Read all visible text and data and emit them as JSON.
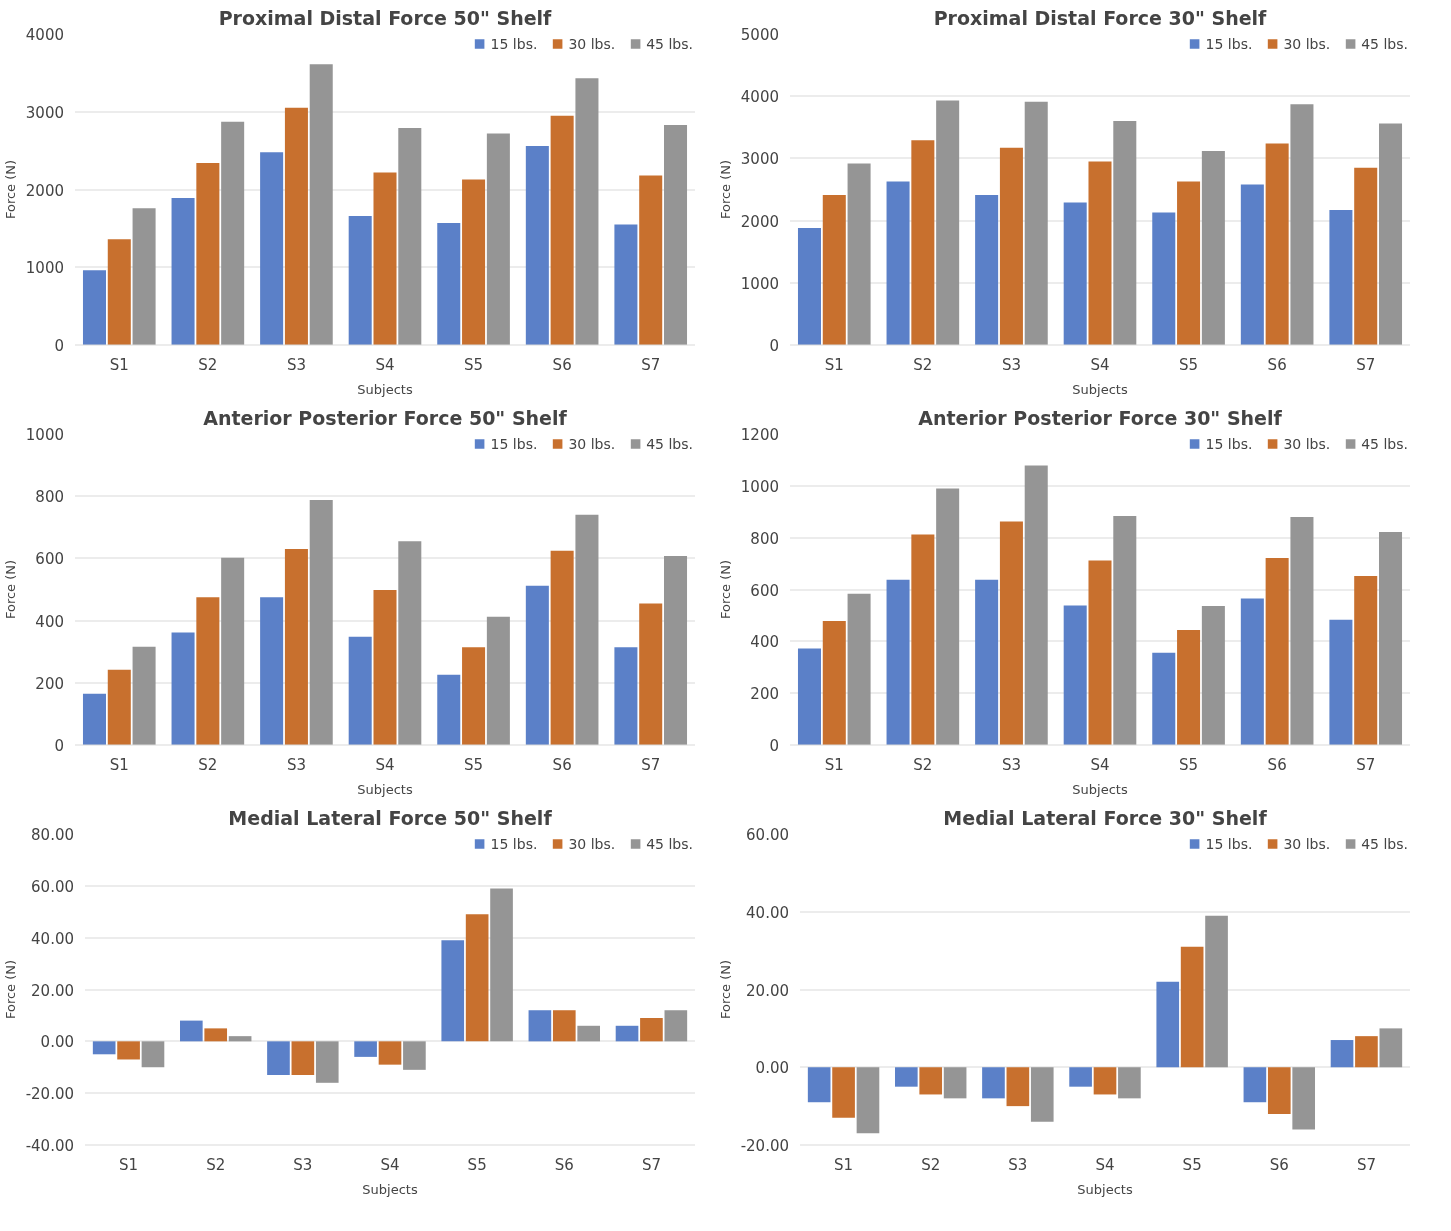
{
  "chart_data": [
    {
      "type": "bar",
      "title": "Proximal Distal Force 50\" Shelf",
      "xlabel": "Subjects",
      "ylabel": "Force (N)",
      "categories": [
        "S1",
        "S2",
        "S3",
        "S4",
        "S5",
        "S6",
        "S7"
      ],
      "ylim": [
        0,
        4000
      ],
      "yticks": [
        0,
        1000,
        2000,
        3000,
        4000
      ],
      "grid": "y",
      "legend": "top right",
      "series": [
        {
          "name": "15 lbs.",
          "color": "#5b80c8",
          "values": [
            960,
            1890,
            2480,
            1660,
            1570,
            2560,
            1550
          ]
        },
        {
          "name": "30 lbs.",
          "color": "#c8702e",
          "values": [
            1360,
            2340,
            3050,
            2220,
            2130,
            2950,
            2180
          ]
        },
        {
          "name": "45 lbs.",
          "color": "#959595",
          "values": [
            1760,
            2870,
            3610,
            2790,
            2720,
            3430,
            2830
          ]
        }
      ]
    },
    {
      "type": "bar",
      "title": "Proximal Distal Force 30\" Shelf",
      "xlabel": "Subjects",
      "ylabel": "Force (N)",
      "categories": [
        "S1",
        "S2",
        "S3",
        "S4",
        "S5",
        "S6",
        "S7"
      ],
      "ylim": [
        0,
        5000
      ],
      "yticks": [
        0,
        1000,
        2000,
        3000,
        4000,
        5000
      ],
      "grid": "y",
      "legend": "top right",
      "series": [
        {
          "name": "15 lbs.",
          "color": "#5b80c8",
          "values": [
            1880,
            2630,
            2410,
            2290,
            2130,
            2580,
            2170
          ]
        },
        {
          "name": "30 lbs.",
          "color": "#c8702e",
          "values": [
            2410,
            3290,
            3170,
            2950,
            2630,
            3240,
            2850
          ]
        },
        {
          "name": "45 lbs.",
          "color": "#959595",
          "values": [
            2920,
            3930,
            3910,
            3600,
            3120,
            3870,
            3560
          ]
        }
      ]
    },
    {
      "type": "bar",
      "title": "Anterior Posterior Force 50\" Shelf",
      "xlabel": "Subjects",
      "ylabel": "Force (N)",
      "categories": [
        "S1",
        "S2",
        "S3",
        "S4",
        "S5",
        "S6",
        "S7"
      ],
      "ylim": [
        0,
        1000
      ],
      "yticks": [
        0,
        200,
        400,
        600,
        800,
        1000
      ],
      "grid": "y",
      "legend": "top right",
      "series": [
        {
          "name": "15 lbs.",
          "color": "#5b80c8",
          "values": [
            165,
            362,
            475,
            348,
            226,
            512,
            314
          ]
        },
        {
          "name": "30 lbs.",
          "color": "#c8702e",
          "values": [
            242,
            475,
            630,
            498,
            314,
            625,
            455
          ]
        },
        {
          "name": "45 lbs.",
          "color": "#959595",
          "values": [
            316,
            602,
            788,
            655,
            412,
            740,
            608
          ]
        }
      ]
    },
    {
      "type": "bar",
      "title": "Anterior Posterior Force 30\" Shelf",
      "xlabel": "Subjects",
      "ylabel": "Force (N)",
      "categories": [
        "S1",
        "S2",
        "S3",
        "S4",
        "S5",
        "S6",
        "S7"
      ],
      "ylim": [
        0,
        1200
      ],
      "yticks": [
        0,
        200,
        400,
        600,
        800,
        1000,
        1200
      ],
      "grid": "y",
      "legend": "top right",
      "series": [
        {
          "name": "15 lbs.",
          "color": "#5b80c8",
          "values": [
            372,
            638,
            638,
            538,
            356,
            565,
            483
          ]
        },
        {
          "name": "30 lbs.",
          "color": "#c8702e",
          "values": [
            478,
            812,
            862,
            712,
            444,
            722,
            652
          ]
        },
        {
          "name": "45 lbs.",
          "color": "#959595",
          "values": [
            584,
            990,
            1078,
            884,
            536,
            880,
            822
          ]
        }
      ]
    },
    {
      "type": "bar",
      "title": "Medial Lateral Force 50\" Shelf",
      "xlabel": "Subjects",
      "ylabel": "Force (N)",
      "categories": [
        "S1",
        "S2",
        "S3",
        "S4",
        "S5",
        "S6",
        "S7"
      ],
      "ylim": [
        -40,
        80
      ],
      "yticks": [
        {
          "value": -40,
          "label": "-40.00"
        },
        {
          "value": -20,
          "label": "-20.00"
        },
        {
          "value": 0,
          "label": "0.00"
        },
        {
          "value": 20,
          "label": "20.00"
        },
        {
          "value": 40,
          "label": "40.00"
        },
        {
          "value": 60,
          "label": "60.00"
        },
        {
          "value": 80,
          "label": "80.00"
        }
      ],
      "grid": "y",
      "legend": "top right",
      "series": [
        {
          "name": "15 lbs.",
          "color": "#5b80c8",
          "values": [
            -5,
            8,
            -13,
            -6,
            39,
            12,
            6
          ]
        },
        {
          "name": "30 lbs.",
          "color": "#c8702e",
          "values": [
            -7,
            5,
            -13,
            -9,
            49,
            12,
            9
          ]
        },
        {
          "name": "45 lbs.",
          "color": "#959595",
          "values": [
            -10,
            2,
            -16,
            -11,
            59,
            6,
            12
          ]
        }
      ]
    },
    {
      "type": "bar",
      "title": "Medial Lateral Force 30\" Shelf",
      "xlabel": "Subjects",
      "ylabel": "Force (N)",
      "categories": [
        "S1",
        "S2",
        "S3",
        "S4",
        "S5",
        "S6",
        "S7"
      ],
      "ylim": [
        -20,
        60
      ],
      "yticks": [
        {
          "value": -20,
          "label": "-20.00"
        },
        {
          "value": 0,
          "label": "0.00"
        },
        {
          "value": 20,
          "label": "20.00"
        },
        {
          "value": 40,
          "label": "40.00"
        },
        {
          "value": 60,
          "label": "60.00"
        }
      ],
      "grid": "y",
      "legend": "top right",
      "series": [
        {
          "name": "15 lbs.",
          "color": "#5b80c8",
          "values": [
            -9,
            -5,
            -8,
            -5,
            22,
            -9,
            7
          ]
        },
        {
          "name": "30 lbs.",
          "color": "#c8702e",
          "values": [
            -13,
            -7,
            -10,
            -7,
            31,
            -12,
            8
          ]
        },
        {
          "name": "45 lbs.",
          "color": "#959595",
          "values": [
            -17,
            -8,
            -14,
            -8,
            39,
            -16,
            10
          ]
        }
      ]
    }
  ]
}
